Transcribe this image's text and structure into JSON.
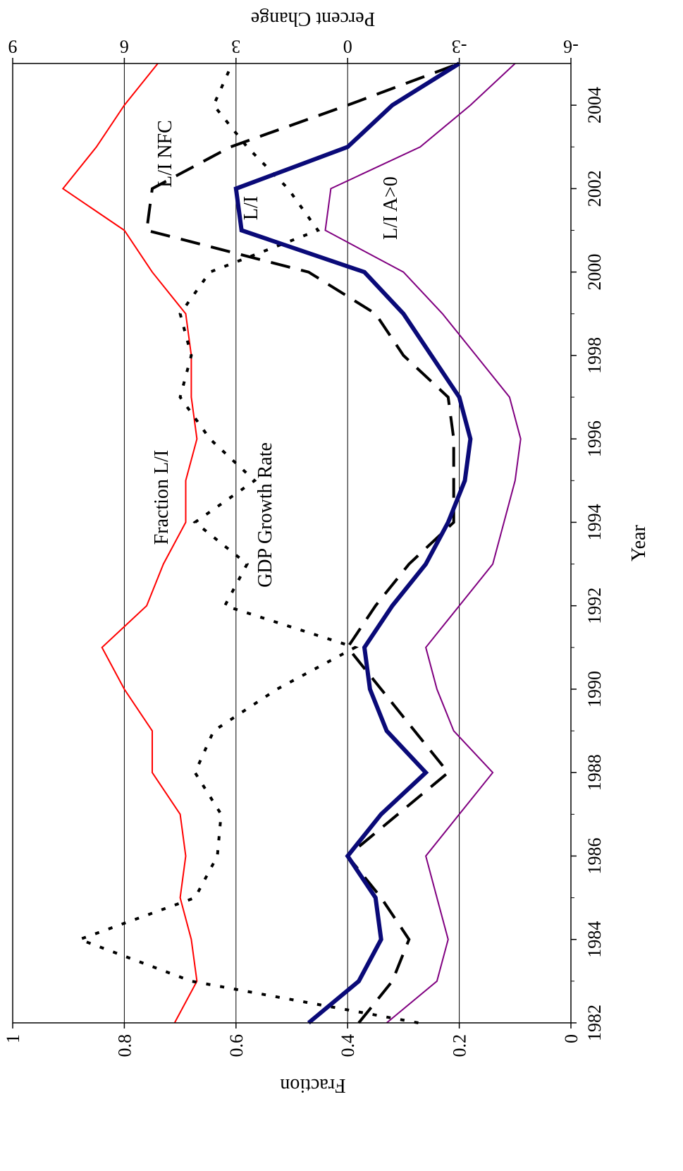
{
  "chart_data": {
    "type": "line",
    "orientation": "rotated-90-clockwise",
    "xlabel": "Year",
    "ylabel_left": "Fraction",
    "ylabel_right": "Percent Change",
    "xlim": [
      1982,
      2005
    ],
    "x_ticks": [
      1982,
      1984,
      1986,
      1988,
      1990,
      1992,
      1994,
      1996,
      1998,
      2000,
      2002,
      2004
    ],
    "x_tick_labels": [
      "1982",
      "1984",
      "1986",
      "1988",
      "1990",
      "1992",
      "1994",
      "1996",
      "1998",
      "2000",
      "2002",
      "2004"
    ],
    "ylim_left": [
      0,
      1
    ],
    "y_ticks_left": [
      0,
      0.2,
      0.4,
      0.6,
      0.8,
      1
    ],
    "y_tick_labels_left": [
      "0",
      "0.2",
      "0.4",
      "0.6",
      "0.8",
      "1"
    ],
    "ylim_right": [
      -6,
      9
    ],
    "y_ticks_right": [
      -6,
      -3,
      0,
      3,
      6,
      9
    ],
    "y_tick_labels_right": [
      "-6",
      "-3",
      "0",
      "3",
      "6",
      "9"
    ],
    "grid": "horizontal gridlines at 0.2, 0.4, 0.6, 0.8",
    "x": [
      1982,
      1983,
      1984,
      1985,
      1986,
      1987,
      1988,
      1989,
      1990,
      1991,
      1992,
      1993,
      1994,
      1995,
      1996,
      1997,
      1998,
      1999,
      2000,
      2001,
      2002,
      2003,
      2004,
      2005
    ],
    "series": [
      {
        "name": "Fraction L/I",
        "axis": "left",
        "color": "#ff0000",
        "style": "thin",
        "values": [
          0.71,
          0.67,
          0.68,
          0.7,
          0.69,
          0.7,
          0.75,
          0.75,
          0.8,
          0.84,
          0.76,
          0.73,
          0.69,
          0.69,
          0.67,
          0.68,
          0.68,
          0.69,
          0.75,
          0.8,
          0.91,
          0.85,
          0.8,
          0.74
        ]
      },
      {
        "name": "GDP Growth Rate",
        "axis": "right",
        "color": "#000000",
        "style": "dotted",
        "values": [
          -1.9,
          4.2,
          7.2,
          4.1,
          3.5,
          3.4,
          4.1,
          3.6,
          1.9,
          -0.2,
          3.3,
          2.7,
          4.1,
          2.5,
          3.7,
          4.5,
          4.2,
          4.5,
          3.7,
          0.8,
          1.6,
          2.7,
          3.6,
          3.1
        ]
      },
      {
        "name": "L/I NFC",
        "axis": "left",
        "color": "#000000",
        "style": "dashed",
        "values": [
          0.38,
          0.32,
          0.29,
          0.34,
          0.4,
          0.31,
          0.22,
          0.28,
          0.34,
          0.4,
          0.35,
          0.29,
          0.21,
          0.21,
          0.21,
          0.22,
          0.3,
          0.35,
          0.47,
          0.76,
          0.75,
          0.61,
          0.4,
          0.2
        ]
      },
      {
        "name": "L/I",
        "axis": "left",
        "color": "#0a0a78",
        "style": "thick",
        "values": [
          0.47,
          0.38,
          0.34,
          0.35,
          0.4,
          0.34,
          0.26,
          0.33,
          0.36,
          0.37,
          0.32,
          0.26,
          0.22,
          0.19,
          0.18,
          0.2,
          0.25,
          0.3,
          0.37,
          0.59,
          0.6,
          0.4,
          0.32,
          0.2
        ]
      },
      {
        "name": "L/I A>0",
        "axis": "left",
        "color": "#800080",
        "style": "thin",
        "values": [
          0.33,
          0.24,
          0.22,
          0.24,
          0.26,
          0.2,
          0.14,
          0.21,
          0.24,
          0.26,
          0.2,
          0.14,
          0.12,
          0.1,
          0.09,
          0.11,
          0.17,
          0.23,
          0.3,
          0.44,
          0.43,
          0.27,
          0.18,
          0.1
        ]
      }
    ],
    "annotations": [
      {
        "text": "Fraction L/I",
        "series": "Fraction L/I"
      },
      {
        "text": "GDP Growth Rate",
        "series": "GDP Growth Rate"
      },
      {
        "text": "L/I NFC",
        "series": "L/I NFC"
      },
      {
        "text": "L/I",
        "series": "L/I"
      },
      {
        "text": "L/I A>0",
        "series": "L/I A>0"
      }
    ]
  }
}
